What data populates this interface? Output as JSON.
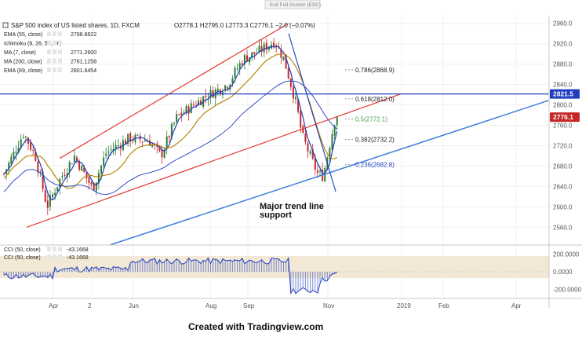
{
  "exit_fullscreen": "Exit Full Screen (ESC)",
  "header": {
    "title": "S&P 500 index of US listed shares, 1D, FXCM",
    "ohlc": "O2778.1  H2795.0  L2773.3  C2776.1  −2.0 (−0.07%)"
  },
  "indicators": [
    {
      "label": "EMA (55, close)",
      "value": "2798.6622",
      "color": "#b8860b"
    },
    {
      "label": "Ichimoku (9, 26, 52, 26)",
      "value": "",
      "color": "#cccccc"
    },
    {
      "label": "MA (7, close)",
      "value": "2771.2600",
      "color": "#1f3fbf"
    },
    {
      "label": "MA (200, close)",
      "value": "2761.1258",
      "color": "#1f3fbf"
    },
    {
      "label": "EMA (89, close)",
      "value": "2801.6454",
      "color": "#1f3fbf"
    }
  ],
  "oscillator_legend": [
    {
      "label": "CCI (50, close)",
      "value": "-43.1668"
    },
    {
      "label": "CCI (50, close)",
      "value": "-43.1668"
    }
  ],
  "colors": {
    "candle_up": "#2e7d32",
    "candle_down": "#c62828",
    "channel": "#e53935",
    "trendline": "#3f7fdc",
    "horizontal_line": "#1f3fbf",
    "cci": "#1f3fbf",
    "cci_band": "#f3e8d6",
    "price_label_hline": "#1f3fbf",
    "price_label_last": "#c62828"
  },
  "chart_data": {
    "type": "candlestick",
    "symbol": "S&P 500 index of US listed shares",
    "timeframe": "1D",
    "price_axis": {
      "ticks": [
        "2960.0",
        "2920.0",
        "2880.0",
        "2840.0",
        "2800.0",
        "2760.0",
        "2720.0",
        "2680.0",
        "2640.0",
        "2600.0",
        "2560.0"
      ],
      "ylim": [
        2525,
        2975
      ]
    },
    "cci_axis": {
      "ticks": [
        "200.0000",
        "0.0000",
        "-200.0000"
      ],
      "ylim": [
        -300,
        300
      ]
    },
    "time_axis": {
      "ticks": [
        "Apr",
        "2",
        "Jun",
        "Aug",
        "Sep",
        "Nov",
        "2019",
        "Feb",
        "Apr"
      ]
    },
    "price_labels": {
      "horizontal_line": "2821.5",
      "last_price": "2776.1"
    },
    "horizontal_line": 2821.5,
    "fibonacci": [
      {
        "label": "0.786(2868.9)",
        "value": 2868.9,
        "color": "#222222"
      },
      {
        "label": "0.618(2812.0)",
        "value": 2812.0,
        "color": "#222222"
      },
      {
        "label": "0.5(2772.1)",
        "value": 2772.1,
        "color": "#43a047"
      },
      {
        "label": "0.382(2732.2)",
        "value": 2732.2,
        "color": "#222222"
      },
      {
        "label": "0.236(2682.8)",
        "value": 2682.8,
        "color": "#1f3fbf"
      }
    ],
    "annotation": [
      "Major trend line",
      "support"
    ]
  },
  "footer": "Created with Tradingview.com"
}
